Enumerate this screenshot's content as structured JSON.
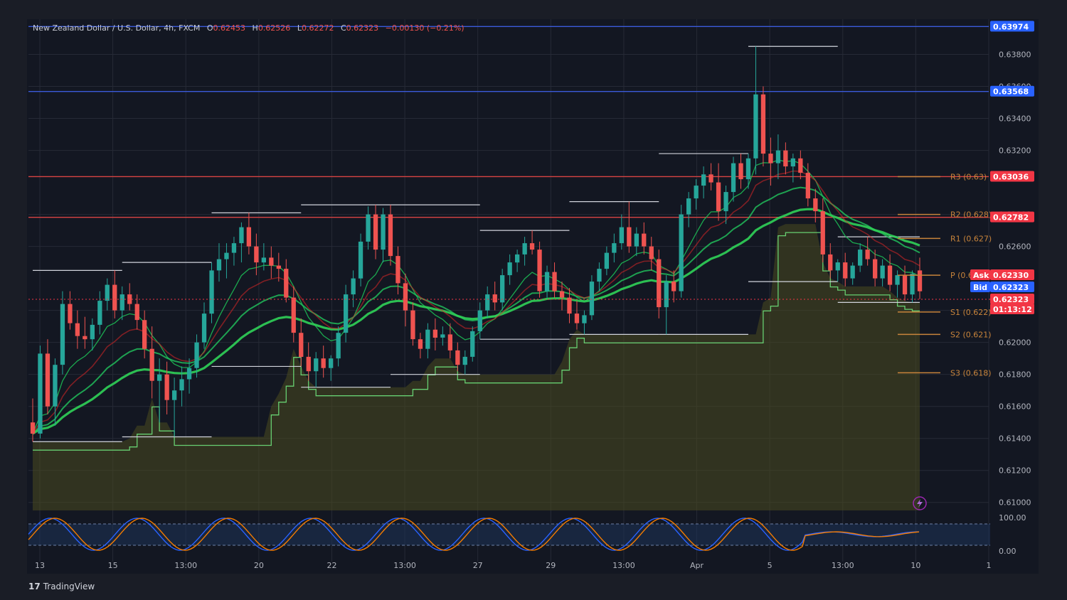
{
  "header": {
    "symbol": "New Zealand Dollar / U.S. Dollar, 4h, FXCM",
    "open_key": "O",
    "open": "0.62453",
    "high_key": "H",
    "high": "0.62526",
    "low_key": "L",
    "low": "0.62272",
    "close_key": "C",
    "close": "0.62323",
    "change": "−0.00130 (−0.21%)"
  },
  "brand": {
    "logo": "17",
    "name": "TradingView"
  },
  "colors": {
    "background": "#1a1d26",
    "up": "#26a69a",
    "down": "#ef5350",
    "grid": "#262a36",
    "resistance_line": "#d84343",
    "blue_line": "#3b5bdb",
    "pivot": "#c8843b",
    "ema_green": "#22c55e",
    "ema_red": "#dc2626"
  },
  "chart_data": {
    "type": "candlestick",
    "y_axis_currency": "USD",
    "ylim": [
      0.6095,
      0.6402
    ],
    "y_ticks": [
      "0.63800",
      "0.63600",
      "0.63400",
      "0.63200",
      "0.62800",
      "0.62600",
      "0.62200",
      "0.62000",
      "0.61800",
      "0.61600",
      "0.61400",
      "0.61200",
      "0.61000"
    ],
    "x_ticks": [
      "13",
      "15",
      "13:00",
      "20",
      "22",
      "13:00",
      "27",
      "29",
      "13:00",
      "Apr",
      "5",
      "13:00",
      "10",
      "1"
    ],
    "horizontal_lines": [
      {
        "name": "blue-level-upper",
        "value": 0.63974,
        "label": "0.63974",
        "color": "#3b5bdb"
      },
      {
        "name": "blue-level-lower",
        "value": 0.63568,
        "label": "0.63568",
        "color": "#3b5bdb"
      },
      {
        "name": "red-level-upper",
        "value": 0.63036,
        "label": "0.63036",
        "color": "#d84343"
      },
      {
        "name": "red-level-lower",
        "value": 0.62782,
        "label": "0.62782",
        "color": "#d84343"
      }
    ],
    "pivots": [
      {
        "label": "R3 (0.63)",
        "value": 0.63036
      },
      {
        "label": "R2 (0.628)",
        "value": 0.628
      },
      {
        "label": "R1 (0.627)",
        "value": 0.6265
      },
      {
        "label": "P (0.6",
        "value": 0.6242
      },
      {
        "label": "S1 (0.622)",
        "value": 0.6219
      },
      {
        "label": "S2 (0.621)",
        "value": 0.6205
      },
      {
        "label": "S3 (0.618)",
        "value": 0.6181
      }
    ],
    "price_tags": {
      "ask_label": "Ask",
      "ask": "0.62330",
      "bid_label": "Bid",
      "bid": "0.62323",
      "last": "0.62323",
      "countdown": "01:13:12"
    },
    "candles_ohlc": [
      [
        0.615,
        0.6165,
        0.6138,
        0.6143
      ],
      [
        0.6143,
        0.6198,
        0.614,
        0.6193
      ],
      [
        0.6193,
        0.6202,
        0.6155,
        0.616
      ],
      [
        0.616,
        0.619,
        0.6148,
        0.6186
      ],
      [
        0.6186,
        0.6232,
        0.618,
        0.6224
      ],
      [
        0.6224,
        0.6232,
        0.6208,
        0.6212
      ],
      [
        0.6212,
        0.622,
        0.6196,
        0.6204
      ],
      [
        0.6204,
        0.6216,
        0.6196,
        0.6202
      ],
      [
        0.6202,
        0.6215,
        0.6195,
        0.6211
      ],
      [
        0.6211,
        0.6232,
        0.6205,
        0.6226
      ],
      [
        0.6226,
        0.624,
        0.622,
        0.6236
      ],
      [
        0.6236,
        0.6245,
        0.6215,
        0.622
      ],
      [
        0.622,
        0.6235,
        0.6214,
        0.623
      ],
      [
        0.623,
        0.6237,
        0.622,
        0.6224
      ],
      [
        0.6224,
        0.623,
        0.6208,
        0.6214
      ],
      [
        0.6214,
        0.622,
        0.619,
        0.6196
      ],
      [
        0.6196,
        0.621,
        0.6165,
        0.6176
      ],
      [
        0.6176,
        0.619,
        0.615,
        0.618
      ],
      [
        0.618,
        0.6188,
        0.6155,
        0.6164
      ],
      [
        0.6164,
        0.6178,
        0.6141,
        0.617
      ],
      [
        0.617,
        0.6185,
        0.616,
        0.6177
      ],
      [
        0.6177,
        0.619,
        0.6168,
        0.6184
      ],
      [
        0.6184,
        0.6205,
        0.6178,
        0.62
      ],
      [
        0.62,
        0.6225,
        0.6196,
        0.6218
      ],
      [
        0.6218,
        0.625,
        0.6212,
        0.6245
      ],
      [
        0.6245,
        0.6262,
        0.6238,
        0.6252
      ],
      [
        0.6252,
        0.6262,
        0.624,
        0.6256
      ],
      [
        0.6256,
        0.6266,
        0.6248,
        0.6262
      ],
      [
        0.6262,
        0.6275,
        0.625,
        0.6272
      ],
      [
        0.6272,
        0.6281,
        0.6255,
        0.626
      ],
      [
        0.626,
        0.6268,
        0.6242,
        0.625
      ],
      [
        0.625,
        0.6262,
        0.6245,
        0.6253
      ],
      [
        0.6253,
        0.626,
        0.624,
        0.6248
      ],
      [
        0.6248,
        0.6256,
        0.6238,
        0.6246
      ],
      [
        0.6246,
        0.6252,
        0.6225,
        0.6228
      ],
      [
        0.6228,
        0.6235,
        0.62,
        0.6206
      ],
      [
        0.6206,
        0.6215,
        0.6185,
        0.6191
      ],
      [
        0.6191,
        0.62,
        0.6176,
        0.6182
      ],
      [
        0.6182,
        0.6194,
        0.6172,
        0.619
      ],
      [
        0.619,
        0.6198,
        0.6178,
        0.6184
      ],
      [
        0.6184,
        0.6192,
        0.6176,
        0.619
      ],
      [
        0.619,
        0.621,
        0.6185,
        0.6206
      ],
      [
        0.6206,
        0.6236,
        0.62,
        0.623
      ],
      [
        0.623,
        0.6245,
        0.6222,
        0.624
      ],
      [
        0.624,
        0.6268,
        0.6235,
        0.6263
      ],
      [
        0.6263,
        0.6285,
        0.6258,
        0.628
      ],
      [
        0.628,
        0.6286,
        0.6252,
        0.6258
      ],
      [
        0.6258,
        0.6284,
        0.625,
        0.628
      ],
      [
        0.628,
        0.6286,
        0.6248,
        0.6254
      ],
      [
        0.6254,
        0.626,
        0.623,
        0.6237
      ],
      [
        0.6237,
        0.6243,
        0.621,
        0.622
      ],
      [
        0.622,
        0.6225,
        0.6198,
        0.6202
      ],
      [
        0.6202,
        0.6206,
        0.619,
        0.6196
      ],
      [
        0.6196,
        0.6212,
        0.619,
        0.6208
      ],
      [
        0.6208,
        0.6215,
        0.6195,
        0.6203
      ],
      [
        0.6203,
        0.621,
        0.6198,
        0.6205
      ],
      [
        0.6205,
        0.6212,
        0.619,
        0.6195
      ],
      [
        0.6195,
        0.62,
        0.6182,
        0.6186
      ],
      [
        0.6186,
        0.6195,
        0.618,
        0.6191
      ],
      [
        0.6191,
        0.621,
        0.6188,
        0.6207
      ],
      [
        0.6207,
        0.6225,
        0.6202,
        0.622
      ],
      [
        0.622,
        0.6235,
        0.6215,
        0.623
      ],
      [
        0.623,
        0.6238,
        0.622,
        0.6225
      ],
      [
        0.6225,
        0.6246,
        0.622,
        0.6242
      ],
      [
        0.6242,
        0.6255,
        0.6236,
        0.625
      ],
      [
        0.625,
        0.6258,
        0.6244,
        0.6255
      ],
      [
        0.6255,
        0.6266,
        0.6248,
        0.6262
      ],
      [
        0.6262,
        0.627,
        0.6255,
        0.6258
      ],
      [
        0.6258,
        0.6263,
        0.6228,
        0.6232
      ],
      [
        0.6232,
        0.6248,
        0.6228,
        0.6244
      ],
      [
        0.6244,
        0.625,
        0.6228,
        0.6232
      ],
      [
        0.6232,
        0.6238,
        0.622,
        0.6228
      ],
      [
        0.6228,
        0.6234,
        0.6212,
        0.6218
      ],
      [
        0.6218,
        0.6226,
        0.6208,
        0.6212
      ],
      [
        0.6212,
        0.622,
        0.6205,
        0.6217
      ],
      [
        0.6217,
        0.6242,
        0.6214,
        0.6238
      ],
      [
        0.6238,
        0.625,
        0.6232,
        0.6246
      ],
      [
        0.6246,
        0.626,
        0.6242,
        0.6256
      ],
      [
        0.6256,
        0.6268,
        0.625,
        0.6262
      ],
      [
        0.6262,
        0.628,
        0.6258,
        0.6272
      ],
      [
        0.6272,
        0.6288,
        0.6256,
        0.626
      ],
      [
        0.626,
        0.6272,
        0.6254,
        0.6268
      ],
      [
        0.6268,
        0.6275,
        0.6255,
        0.626
      ],
      [
        0.626,
        0.6266,
        0.6245,
        0.6252
      ],
      [
        0.6252,
        0.6258,
        0.6215,
        0.6222
      ],
      [
        0.6222,
        0.6242,
        0.6205,
        0.6238
      ],
      [
        0.6238,
        0.6245,
        0.6225,
        0.6232
      ],
      [
        0.6232,
        0.6286,
        0.6228,
        0.628
      ],
      [
        0.628,
        0.6294,
        0.6272,
        0.629
      ],
      [
        0.629,
        0.6302,
        0.6283,
        0.6298
      ],
      [
        0.6298,
        0.631,
        0.629,
        0.6305
      ],
      [
        0.6305,
        0.6312,
        0.6295,
        0.63
      ],
      [
        0.63,
        0.6312,
        0.6276,
        0.6282
      ],
      [
        0.6282,
        0.6298,
        0.6274,
        0.6294
      ],
      [
        0.6294,
        0.6316,
        0.6288,
        0.6312
      ],
      [
        0.6312,
        0.6318,
        0.6296,
        0.6302
      ],
      [
        0.6302,
        0.6318,
        0.6296,
        0.6315
      ],
      [
        0.6315,
        0.6385,
        0.6305,
        0.6355
      ],
      [
        0.6355,
        0.636,
        0.631,
        0.6318
      ],
      [
        0.6318,
        0.6328,
        0.6298,
        0.6312
      ],
      [
        0.6312,
        0.633,
        0.6302,
        0.632
      ],
      [
        0.632,
        0.6325,
        0.6305,
        0.631
      ],
      [
        0.631,
        0.6318,
        0.63,
        0.6315
      ],
      [
        0.6315,
        0.632,
        0.6302,
        0.6306
      ],
      [
        0.6306,
        0.6312,
        0.6285,
        0.629
      ],
      [
        0.629,
        0.6296,
        0.6275,
        0.6282
      ],
      [
        0.6282,
        0.629,
        0.625,
        0.6255
      ],
      [
        0.6255,
        0.6262,
        0.624,
        0.6245
      ],
      [
        0.6245,
        0.6252,
        0.6238,
        0.625
      ],
      [
        0.625,
        0.6256,
        0.6235,
        0.624
      ],
      [
        0.624,
        0.625,
        0.6236,
        0.6248
      ],
      [
        0.6248,
        0.6262,
        0.6244,
        0.6258
      ],
      [
        0.6258,
        0.6266,
        0.6248,
        0.6252
      ],
      [
        0.6252,
        0.6258,
        0.6235,
        0.624
      ],
      [
        0.624,
        0.6252,
        0.6235,
        0.6248
      ],
      [
        0.6248,
        0.6255,
        0.6232,
        0.6236
      ],
      [
        0.6236,
        0.6245,
        0.6228,
        0.6242
      ],
      [
        0.6242,
        0.6248,
        0.6226,
        0.623
      ],
      [
        0.623,
        0.6245,
        0.6225,
        0.6243
      ],
      [
        0.6245,
        0.6253,
        0.6227,
        0.6232
      ]
    ]
  }
}
